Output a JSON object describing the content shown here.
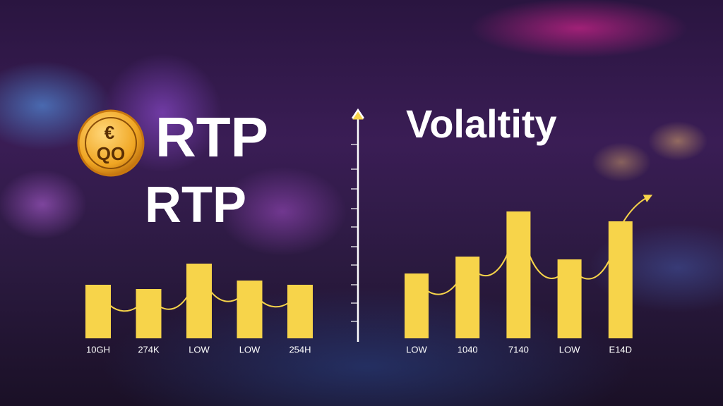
{
  "coin": {
    "symbol": "€",
    "text": "QO"
  },
  "heading": "RTP",
  "chart_data": [
    {
      "type": "bar",
      "title": "RTP",
      "color": "#f7d44a",
      "categories": [
        "10GH",
        "274K",
        "LOW",
        "LOW",
        "254H"
      ],
      "values": [
        38,
        35,
        53,
        41,
        38
      ]
    },
    {
      "type": "bar",
      "title": "Volaltity",
      "color": "#f7d44a",
      "categories": [
        "LOW",
        "1040",
        "7140",
        "LOW",
        "E14D"
      ],
      "values": [
        46,
        58,
        90,
        56,
        83
      ]
    }
  ]
}
